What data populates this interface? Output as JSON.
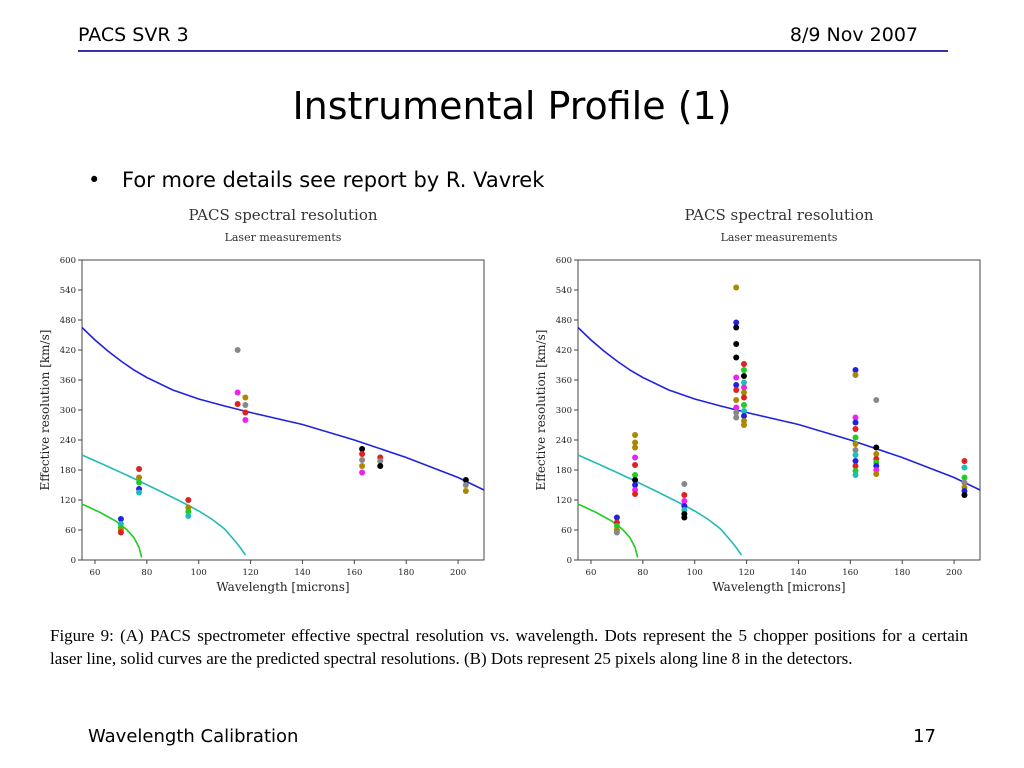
{
  "header": {
    "left": "PACS SVR 3",
    "right": "8/9 Nov 2007"
  },
  "slide_title": "Instrumental Profile (1)",
  "bullet": {
    "glyph": "•",
    "text": "For more details see report by R. Vavrek"
  },
  "caption": "Figure 9: (A) PACS spectrometer effective spectral resolution vs. wavelength. Dots represent the 5 chopper positions for a certain laser line, solid curves are the predicted spectral resolutions. (B) Dots represent 25 pixels along line 8 in the detectors.",
  "footer": {
    "left": "Wavelength Calibration",
    "right": "17"
  },
  "chart_data": [
    {
      "type": "scatter",
      "title": "PACS spectral resolution",
      "subtitle": "Laser measurements",
      "xlabel": "Wavelength [microns]",
      "ylabel": "Effective resolution [km/s]",
      "xlim": [
        55,
        210
      ],
      "ylim": [
        0,
        600
      ],
      "xticks": [
        "60",
        "80",
        "100",
        "120",
        "140",
        "160",
        "180",
        "200"
      ],
      "yticks": [
        "0",
        "60",
        "120",
        "180",
        "240",
        "300",
        "360",
        "420",
        "480",
        "540",
        "600"
      ],
      "grid": false,
      "curves": [
        {
          "color": "#2222dd",
          "points": [
            [
              55,
              465
            ],
            [
              60,
              440
            ],
            [
              65,
              418
            ],
            [
              70,
              398
            ],
            [
              75,
              380
            ],
            [
              80,
              365
            ],
            [
              90,
              340
            ],
            [
              100,
              322
            ],
            [
              110,
              308
            ],
            [
              120,
              295
            ],
            [
              140,
              271
            ],
            [
              160,
              240
            ],
            [
              180,
              205
            ],
            [
              200,
              165
            ],
            [
              210,
              140
            ]
          ]
        },
        {
          "color": "#22bbbb",
          "points": [
            [
              55,
              210
            ],
            [
              65,
              187
            ],
            [
              75,
              163
            ],
            [
              85,
              138
            ],
            [
              95,
              112
            ],
            [
              100,
              98
            ],
            [
              105,
              82
            ],
            [
              110,
              62
            ],
            [
              112,
              50
            ],
            [
              114,
              38
            ],
            [
              116,
              25
            ],
            [
              118,
              10
            ]
          ]
        },
        {
          "color": "#22cc22",
          "points": [
            [
              55,
              112
            ],
            [
              62,
              95
            ],
            [
              68,
              78
            ],
            [
              72,
              62
            ],
            [
              75,
              45
            ],
            [
              77,
              25
            ],
            [
              78,
              5
            ]
          ]
        }
      ],
      "points": [
        {
          "x": 70,
          "y": 82,
          "c": "#2222dd"
        },
        {
          "x": 70,
          "y": 72,
          "c": "#22bbbb"
        },
        {
          "x": 70,
          "y": 65,
          "c": "#22cc22"
        },
        {
          "x": 70,
          "y": 60,
          "c": "#aa8800"
        },
        {
          "x": 70,
          "y": 55,
          "c": "#dd2222"
        },
        {
          "x": 77,
          "y": 182,
          "c": "#dd2222"
        },
        {
          "x": 77,
          "y": 165,
          "c": "#aa8800"
        },
        {
          "x": 77,
          "y": 155,
          "c": "#22cc22"
        },
        {
          "x": 77,
          "y": 142,
          "c": "#2222dd"
        },
        {
          "x": 77,
          "y": 135,
          "c": "#22bbbb"
        },
        {
          "x": 96,
          "y": 120,
          "c": "#dd2222"
        },
        {
          "x": 96,
          "y": 105,
          "c": "#aa8800"
        },
        {
          "x": 96,
          "y": 97,
          "c": "#22cc22"
        },
        {
          "x": 96,
          "y": 88,
          "c": "#22bbbb"
        },
        {
          "x": 115,
          "y": 420,
          "c": "#888888"
        },
        {
          "x": 115,
          "y": 335,
          "c": "#ee22ee"
        },
        {
          "x": 115,
          "y": 312,
          "c": "#dd2222"
        },
        {
          "x": 118,
          "y": 325,
          "c": "#aa8800"
        },
        {
          "x": 118,
          "y": 310,
          "c": "#888888"
        },
        {
          "x": 118,
          "y": 295,
          "c": "#dd2222"
        },
        {
          "x": 118,
          "y": 280,
          "c": "#ee22ee"
        },
        {
          "x": 163,
          "y": 222,
          "c": "#000000"
        },
        {
          "x": 163,
          "y": 212,
          "c": "#dd2222"
        },
        {
          "x": 163,
          "y": 200,
          "c": "#888888"
        },
        {
          "x": 163,
          "y": 188,
          "c": "#aa8800"
        },
        {
          "x": 163,
          "y": 175,
          "c": "#ee22ee"
        },
        {
          "x": 170,
          "y": 205,
          "c": "#dd2222"
        },
        {
          "x": 170,
          "y": 198,
          "c": "#888888"
        },
        {
          "x": 170,
          "y": 188,
          "c": "#000000"
        },
        {
          "x": 203,
          "y": 160,
          "c": "#000000"
        },
        {
          "x": 203,
          "y": 150,
          "c": "#888888"
        },
        {
          "x": 203,
          "y": 138,
          "c": "#aa8800"
        }
      ]
    },
    {
      "type": "scatter",
      "title": "PACS spectral resolution",
      "subtitle": "Laser measurements",
      "xlabel": "Wavelength [microns]",
      "ylabel": "Effective resolution [km/s]",
      "xlim": [
        55,
        210
      ],
      "ylim": [
        0,
        600
      ],
      "xticks": [
        "60",
        "80",
        "100",
        "120",
        "140",
        "160",
        "180",
        "200"
      ],
      "yticks": [
        "0",
        "60",
        "120",
        "180",
        "240",
        "300",
        "360",
        "420",
        "480",
        "540",
        "600"
      ],
      "grid": false,
      "curves": [
        {
          "color": "#2222dd",
          "points": [
            [
              55,
              465
            ],
            [
              60,
              440
            ],
            [
              65,
              418
            ],
            [
              70,
              398
            ],
            [
              75,
              380
            ],
            [
              80,
              365
            ],
            [
              90,
              340
            ],
            [
              100,
              322
            ],
            [
              110,
              308
            ],
            [
              120,
              295
            ],
            [
              140,
              271
            ],
            [
              160,
              240
            ],
            [
              180,
              205
            ],
            [
              200,
              165
            ],
            [
              210,
              140
            ]
          ]
        },
        {
          "color": "#22bbbb",
          "points": [
            [
              55,
              210
            ],
            [
              65,
              187
            ],
            [
              75,
              163
            ],
            [
              85,
              138
            ],
            [
              95,
              112
            ],
            [
              100,
              98
            ],
            [
              105,
              82
            ],
            [
              110,
              62
            ],
            [
              112,
              50
            ],
            [
              114,
              38
            ],
            [
              116,
              25
            ],
            [
              118,
              10
            ]
          ]
        },
        {
          "color": "#22cc22",
          "points": [
            [
              55,
              112
            ],
            [
              62,
              95
            ],
            [
              68,
              78
            ],
            [
              72,
              62
            ],
            [
              75,
              45
            ],
            [
              77,
              25
            ],
            [
              78,
              5
            ]
          ]
        }
      ],
      "points": [
        {
          "x": 70,
          "y": 85,
          "c": "#2222dd"
        },
        {
          "x": 70,
          "y": 75,
          "c": "#dd2222"
        },
        {
          "x": 70,
          "y": 68,
          "c": "#22cc22"
        },
        {
          "x": 70,
          "y": 60,
          "c": "#aa8800"
        },
        {
          "x": 70,
          "y": 55,
          "c": "#888888"
        },
        {
          "x": 77,
          "y": 250,
          "c": "#aa8800"
        },
        {
          "x": 77,
          "y": 235,
          "c": "#aa8800"
        },
        {
          "x": 77,
          "y": 225,
          "c": "#aa8800"
        },
        {
          "x": 77,
          "y": 205,
          "c": "#ee22ee"
        },
        {
          "x": 77,
          "y": 190,
          "c": "#dd2222"
        },
        {
          "x": 77,
          "y": 170,
          "c": "#22cc22"
        },
        {
          "x": 77,
          "y": 160,
          "c": "#000000"
        },
        {
          "x": 77,
          "y": 150,
          "c": "#2222dd"
        },
        {
          "x": 77,
          "y": 140,
          "c": "#ee22ee"
        },
        {
          "x": 77,
          "y": 132,
          "c": "#dd2222"
        },
        {
          "x": 96,
          "y": 152,
          "c": "#888888"
        },
        {
          "x": 96,
          "y": 130,
          "c": "#dd2222"
        },
        {
          "x": 96,
          "y": 118,
          "c": "#ee22ee"
        },
        {
          "x": 96,
          "y": 108,
          "c": "#2222dd"
        },
        {
          "x": 96,
          "y": 100,
          "c": "#22bbbb"
        },
        {
          "x": 96,
          "y": 92,
          "c": "#000000"
        },
        {
          "x": 96,
          "y": 85,
          "c": "#000000"
        },
        {
          "x": 116,
          "y": 545,
          "c": "#aa8800"
        },
        {
          "x": 116,
          "y": 475,
          "c": "#2222dd"
        },
        {
          "x": 116,
          "y": 465,
          "c": "#000000"
        },
        {
          "x": 116,
          "y": 432,
          "c": "#000000"
        },
        {
          "x": 116,
          "y": 405,
          "c": "#000000"
        },
        {
          "x": 116,
          "y": 365,
          "c": "#ee22ee"
        },
        {
          "x": 116,
          "y": 350,
          "c": "#2222dd"
        },
        {
          "x": 116,
          "y": 340,
          "c": "#dd2222"
        },
        {
          "x": 116,
          "y": 320,
          "c": "#aa8800"
        },
        {
          "x": 116,
          "y": 305,
          "c": "#ee22ee"
        },
        {
          "x": 116,
          "y": 295,
          "c": "#888888"
        },
        {
          "x": 116,
          "y": 285,
          "c": "#888888"
        },
        {
          "x": 119,
          "y": 392,
          "c": "#dd2222"
        },
        {
          "x": 119,
          "y": 380,
          "c": "#22cc22"
        },
        {
          "x": 119,
          "y": 368,
          "c": "#000000"
        },
        {
          "x": 119,
          "y": 355,
          "c": "#22bbbb"
        },
        {
          "x": 119,
          "y": 345,
          "c": "#ee22ee"
        },
        {
          "x": 119,
          "y": 335,
          "c": "#aa8800"
        },
        {
          "x": 119,
          "y": 325,
          "c": "#dd2222"
        },
        {
          "x": 119,
          "y": 310,
          "c": "#22cc22"
        },
        {
          "x": 119,
          "y": 298,
          "c": "#22bbbb"
        },
        {
          "x": 119,
          "y": 288,
          "c": "#2222dd"
        },
        {
          "x": 119,
          "y": 278,
          "c": "#aa8800"
        },
        {
          "x": 119,
          "y": 270,
          "c": "#aa8800"
        },
        {
          "x": 162,
          "y": 380,
          "c": "#2222dd"
        },
        {
          "x": 162,
          "y": 370,
          "c": "#aa8800"
        },
        {
          "x": 162,
          "y": 285,
          "c": "#ee22ee"
        },
        {
          "x": 162,
          "y": 275,
          "c": "#2222dd"
        },
        {
          "x": 162,
          "y": 262,
          "c": "#dd2222"
        },
        {
          "x": 162,
          "y": 245,
          "c": "#22cc22"
        },
        {
          "x": 162,
          "y": 232,
          "c": "#aa8800"
        },
        {
          "x": 162,
          "y": 220,
          "c": "#888888"
        },
        {
          "x": 162,
          "y": 210,
          "c": "#22bbbb"
        },
        {
          "x": 162,
          "y": 198,
          "c": "#2222dd"
        },
        {
          "x": 162,
          "y": 188,
          "c": "#dd2222"
        },
        {
          "x": 162,
          "y": 178,
          "c": "#22cc22"
        },
        {
          "x": 162,
          "y": 170,
          "c": "#22bbbb"
        },
        {
          "x": 170,
          "y": 320,
          "c": "#888888"
        },
        {
          "x": 170,
          "y": 225,
          "c": "#000000"
        },
        {
          "x": 170,
          "y": 212,
          "c": "#aa8800"
        },
        {
          "x": 170,
          "y": 202,
          "c": "#dd2222"
        },
        {
          "x": 170,
          "y": 195,
          "c": "#22cc22"
        },
        {
          "x": 170,
          "y": 188,
          "c": "#2222dd"
        },
        {
          "x": 170,
          "y": 180,
          "c": "#ee22ee"
        },
        {
          "x": 170,
          "y": 172,
          "c": "#aa8800"
        },
        {
          "x": 204,
          "y": 198,
          "c": "#dd2222"
        },
        {
          "x": 204,
          "y": 185,
          "c": "#22bbbb"
        },
        {
          "x": 204,
          "y": 165,
          "c": "#22cc22"
        },
        {
          "x": 204,
          "y": 155,
          "c": "#888888"
        },
        {
          "x": 204,
          "y": 145,
          "c": "#aa8800"
        },
        {
          "x": 204,
          "y": 138,
          "c": "#2222dd"
        },
        {
          "x": 204,
          "y": 130,
          "c": "#000000"
        }
      ]
    }
  ]
}
